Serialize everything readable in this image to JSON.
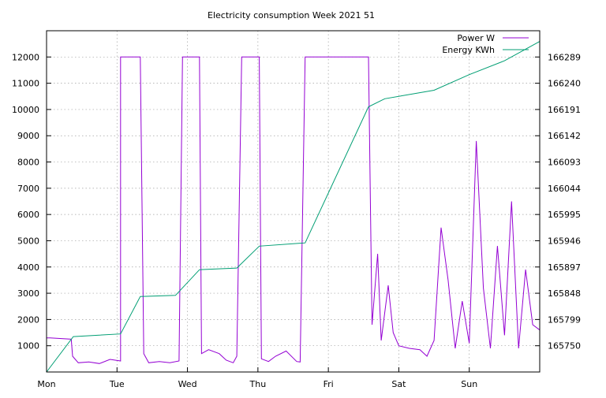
{
  "chart_data": {
    "type": "line",
    "title": "Electricity consumption Week 2021 51",
    "x_ticks": [
      "Mon",
      "Tue",
      "Wed",
      "Thu",
      "Fri",
      "Sat",
      "Sun"
    ],
    "x_range_days": [
      0,
      7
    ],
    "y_left": {
      "range": [
        0,
        13000
      ],
      "ticks": [
        1000,
        2000,
        3000,
        4000,
        5000,
        6000,
        7000,
        8000,
        9000,
        10000,
        11000,
        12000
      ]
    },
    "y_right": {
      "range": [
        165701,
        166338
      ],
      "ticks": [
        165750,
        165799,
        165848,
        165897,
        165946,
        165995,
        166044,
        166093,
        166142,
        166191,
        166240,
        166289
      ]
    },
    "grid": true,
    "legend_position": "top-right",
    "series": [
      {
        "name": "Power W",
        "axis": "left",
        "color": "#9400d3",
        "points": [
          [
            0.0,
            1300
          ],
          [
            0.05,
            1300
          ],
          [
            0.35,
            1250
          ],
          [
            0.37,
            600
          ],
          [
            0.45,
            350
          ],
          [
            0.6,
            380
          ],
          [
            0.75,
            320
          ],
          [
            0.9,
            480
          ],
          [
            1.05,
            420
          ],
          [
            1.05,
            12000
          ],
          [
            1.33,
            12000
          ],
          [
            1.38,
            700
          ],
          [
            1.45,
            350
          ],
          [
            1.6,
            400
          ],
          [
            1.75,
            350
          ],
          [
            1.88,
            420
          ],
          [
            1.93,
            12000
          ],
          [
            2.17,
            12000
          ],
          [
            2.2,
            700
          ],
          [
            2.3,
            850
          ],
          [
            2.45,
            700
          ],
          [
            2.55,
            450
          ],
          [
            2.65,
            350
          ],
          [
            2.7,
            600
          ],
          [
            2.77,
            12000
          ],
          [
            3.02,
            12000
          ],
          [
            3.05,
            500
          ],
          [
            3.15,
            400
          ],
          [
            3.25,
            600
          ],
          [
            3.4,
            800
          ],
          [
            3.55,
            400
          ],
          [
            3.6,
            380
          ],
          [
            3.67,
            12000
          ],
          [
            4.57,
            12000
          ],
          [
            4.6,
            5800
          ],
          [
            4.62,
            1800
          ],
          [
            4.7,
            4500
          ],
          [
            4.75,
            1200
          ],
          [
            4.85,
            3300
          ],
          [
            4.92,
            1500
          ],
          [
            5.0,
            1000
          ],
          [
            5.15,
            900
          ],
          [
            5.3,
            850
          ],
          [
            5.4,
            600
          ],
          [
            5.5,
            1200
          ],
          [
            5.6,
            5500
          ],
          [
            5.7,
            3500
          ],
          [
            5.8,
            900
          ],
          [
            5.9,
            2700
          ],
          [
            6.0,
            1100
          ],
          [
            6.1,
            8800
          ],
          [
            6.2,
            3200
          ],
          [
            6.3,
            900
          ],
          [
            6.4,
            4800
          ],
          [
            6.5,
            1400
          ],
          [
            6.6,
            6500
          ],
          [
            6.7,
            900
          ],
          [
            6.8,
            3900
          ],
          [
            6.9,
            1800
          ],
          [
            7.0,
            1600
          ]
        ]
      },
      {
        "name": "Energy KWh",
        "axis": "right",
        "color": "#009e73",
        "points": [
          [
            0.0,
            165701
          ],
          [
            0.38,
            165767
          ],
          [
            1.05,
            165772
          ],
          [
            1.33,
            165842
          ],
          [
            1.83,
            165844
          ],
          [
            2.17,
            165892
          ],
          [
            2.7,
            165895
          ],
          [
            3.02,
            165936
          ],
          [
            3.67,
            165942
          ],
          [
            4.57,
            166196
          ],
          [
            4.8,
            166211
          ],
          [
            5.5,
            166227
          ],
          [
            6.0,
            166256
          ],
          [
            6.5,
            166282
          ],
          [
            7.0,
            166318
          ]
        ]
      }
    ]
  }
}
